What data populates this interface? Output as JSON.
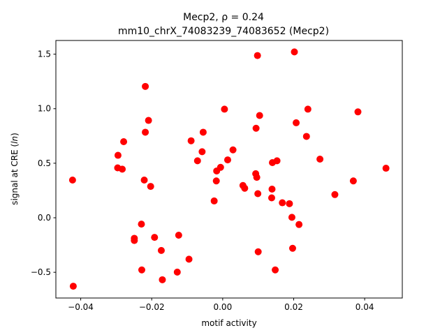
{
  "chart_data": {
    "type": "scatter",
    "title": "Mecp2, ρ = 0.24",
    "subtitle": "mm10_chrX_74083239_74083652 (Mecp2)",
    "xlabel": "motif activity",
    "ylabel": "signal at CRE (ln)",
    "xlim": [
      -0.047,
      0.0506
    ],
    "ylim": [
      -0.7358,
      1.6255
    ],
    "xticks": [
      -0.04,
      -0.02,
      0.0,
      0.02,
      0.04
    ],
    "xtick_labels": [
      "−0.04",
      "−0.02",
      "0.00",
      "0.02",
      "0.04"
    ],
    "yticks": [
      -0.5,
      0.0,
      0.5,
      1.0,
      1.5
    ],
    "ytick_labels": [
      "−0.5",
      "0.0",
      "0.5",
      "1.0",
      "1.5"
    ],
    "grid": false,
    "marker_color": "#ff0000",
    "points": [
      {
        "x": -0.0421,
        "y": -0.6275
      },
      {
        "x": -0.0423,
        "y": 0.3458
      },
      {
        "x": -0.0296,
        "y": 0.4575
      },
      {
        "x": -0.0295,
        "y": 0.5725
      },
      {
        "x": -0.0283,
        "y": 0.4458
      },
      {
        "x": -0.0279,
        "y": 0.6975
      },
      {
        "x": -0.0249,
        "y": -0.1883
      },
      {
        "x": -0.0249,
        "y": -0.2083
      },
      {
        "x": -0.0229,
        "y": -0.0583
      },
      {
        "x": -0.0228,
        "y": -0.4783
      },
      {
        "x": -0.0221,
        "y": 0.3458
      },
      {
        "x": -0.0218,
        "y": 1.2042
      },
      {
        "x": -0.0218,
        "y": 0.7842
      },
      {
        "x": -0.0209,
        "y": 0.8925
      },
      {
        "x": -0.0203,
        "y": 0.2875
      },
      {
        "x": -0.0192,
        "y": -0.18
      },
      {
        "x": -0.0173,
        "y": -0.3
      },
      {
        "x": -0.017,
        "y": -0.5683
      },
      {
        "x": -0.0128,
        "y": -0.4983
      },
      {
        "x": -0.0124,
        "y": -0.16
      },
      {
        "x": -0.0095,
        "y": -0.38
      },
      {
        "x": -0.0089,
        "y": 0.7058
      },
      {
        "x": -0.0071,
        "y": 0.5225
      },
      {
        "x": -0.0058,
        "y": 0.6058
      },
      {
        "x": -0.0055,
        "y": 0.7842
      },
      {
        "x": -0.0024,
        "y": 0.1542
      },
      {
        "x": -0.0018,
        "y": 0.3375
      },
      {
        "x": -0.0017,
        "y": 0.4292
      },
      {
        "x": -0.0006,
        "y": 0.4625
      },
      {
        "x": 0.0005,
        "y": 0.9958
      },
      {
        "x": 0.0014,
        "y": 0.5308
      },
      {
        "x": 0.0029,
        "y": 0.6225
      },
      {
        "x": 0.0057,
        "y": 0.2958
      },
      {
        "x": 0.0062,
        "y": 0.2708
      },
      {
        "x": 0.0093,
        "y": 0.4042
      },
      {
        "x": 0.0094,
        "y": 0.8208
      },
      {
        "x": 0.0096,
        "y": 0.3708
      },
      {
        "x": 0.0098,
        "y": 1.4875
      },
      {
        "x": 0.0099,
        "y": 0.2208
      },
      {
        "x": 0.01,
        "y": -0.3117
      },
      {
        "x": 0.0104,
        "y": 0.9375
      },
      {
        "x": 0.0138,
        "y": 0.1825
      },
      {
        "x": 0.0139,
        "y": 0.2625
      },
      {
        "x": 0.014,
        "y": 0.5058
      },
      {
        "x": 0.0148,
        "y": -0.4783
      },
      {
        "x": 0.0153,
        "y": 0.5225
      },
      {
        "x": 0.0168,
        "y": 0.1375
      },
      {
        "x": 0.0188,
        "y": 0.1292
      },
      {
        "x": 0.0195,
        "y": 0.0042
      },
      {
        "x": 0.0197,
        "y": -0.28
      },
      {
        "x": 0.0202,
        "y": 1.5208
      },
      {
        "x": 0.0207,
        "y": 0.8708
      },
      {
        "x": 0.0215,
        "y": -0.0617
      },
      {
        "x": 0.0236,
        "y": 0.7458
      },
      {
        "x": 0.024,
        "y": 0.9958
      },
      {
        "x": 0.0274,
        "y": 0.5375
      },
      {
        "x": 0.0316,
        "y": 0.2125
      },
      {
        "x": 0.0368,
        "y": 0.3375
      },
      {
        "x": 0.0381,
        "y": 0.9708
      },
      {
        "x": 0.046,
        "y": 0.4542
      }
    ]
  }
}
